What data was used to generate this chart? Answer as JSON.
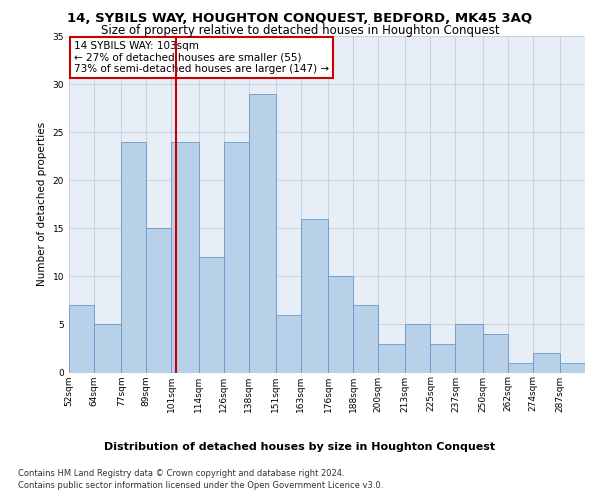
{
  "title": "14, SYBILS WAY, HOUGHTON CONQUEST, BEDFORD, MK45 3AQ",
  "subtitle": "Size of property relative to detached houses in Houghton Conquest",
  "xlabel": "Distribution of detached houses by size in Houghton Conquest",
  "ylabel": "Number of detached properties",
  "footnote1": "Contains HM Land Registry data © Crown copyright and database right 2024.",
  "footnote2": "Contains public sector information licensed under the Open Government Licence v3.0.",
  "annotation_line1": "14 SYBILS WAY: 103sqm",
  "annotation_line2": "← 27% of detached houses are smaller (55)",
  "annotation_line3": "73% of semi-detached houses are larger (147) →",
  "property_size": 103,
  "bar_edges": [
    52,
    64,
    77,
    89,
    101,
    114,
    126,
    138,
    151,
    163,
    176,
    188,
    200,
    213,
    225,
    237,
    250,
    262,
    274,
    287,
    299
  ],
  "bar_heights": [
    7,
    5,
    24,
    15,
    24,
    12,
    24,
    29,
    6,
    16,
    10,
    7,
    3,
    5,
    3,
    5,
    4,
    1,
    2,
    1
  ],
  "bar_color": "#b8d0e8",
  "bar_edge_color": "#6699cc",
  "vline_color": "#cc0000",
  "vline_x": 103,
  "annotation_box_edge_color": "#cc0000",
  "grid_color": "#c8d4e4",
  "background_color": "#e8eef6",
  "ylim": [
    0,
    35
  ],
  "title_fontsize": 9.5,
  "subtitle_fontsize": 8.5,
  "xlabel_fontsize": 8,
  "ylabel_fontsize": 7.5,
  "tick_fontsize": 6.5,
  "annotation_fontsize": 7.5,
  "footnote_fontsize": 6
}
